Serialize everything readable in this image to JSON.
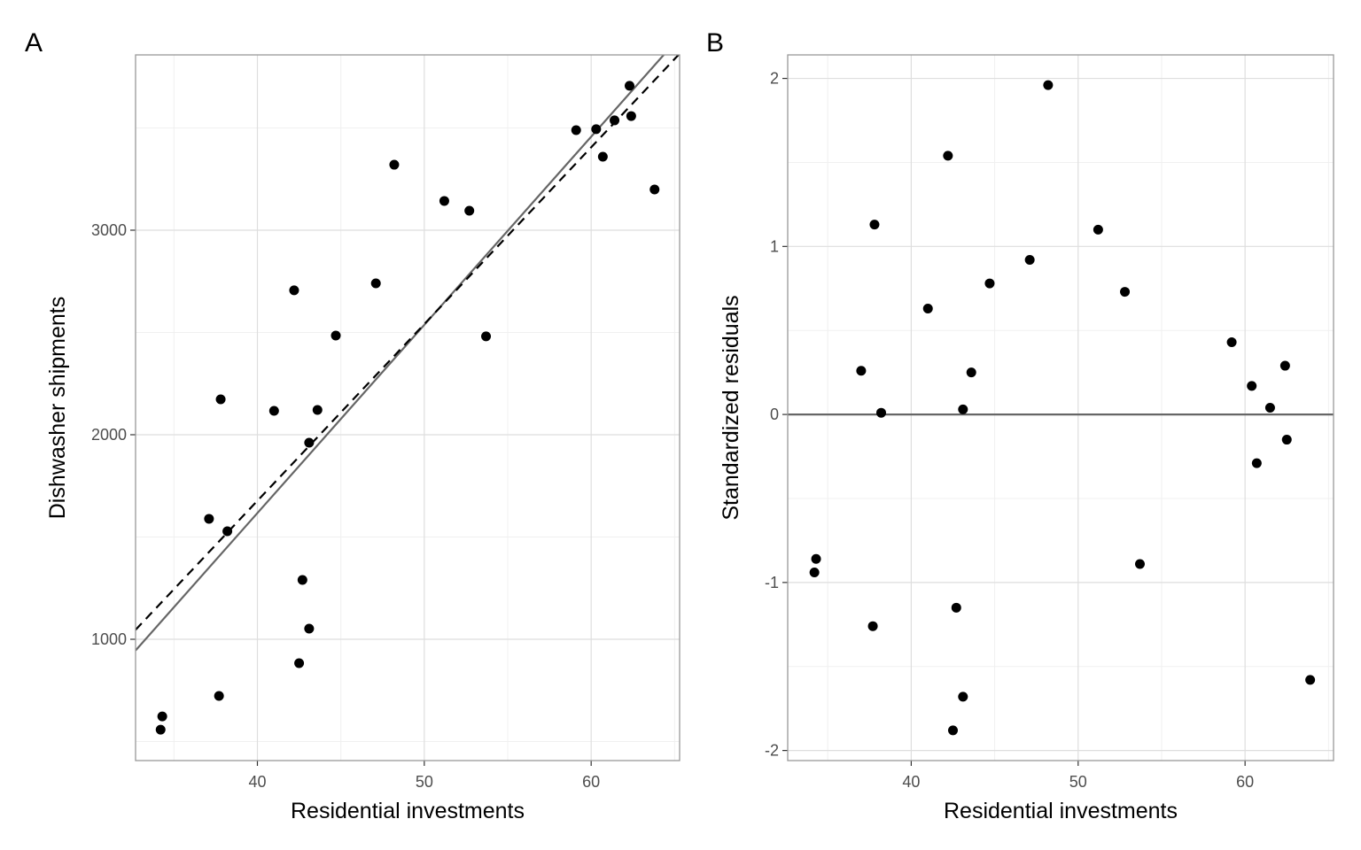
{
  "chart_data": [
    {
      "panel_label": "A",
      "type": "scatter",
      "xlabel": "Residential investments",
      "ylabel": "Dishwasher shipments",
      "xlim": [
        32.7,
        65.3
      ],
      "ylim": [
        407,
        3857
      ],
      "xticks": [
        40,
        50,
        60
      ],
      "yticks": [
        1000,
        2000,
        3000
      ],
      "grid": true,
      "points": [
        [
          34.2,
          558
        ],
        [
          34.3,
          623
        ],
        [
          37.7,
          723
        ],
        [
          37.1,
          1589
        ],
        [
          37.8,
          2173
        ],
        [
          38.2,
          1528
        ],
        [
          41.0,
          2117
        ],
        [
          42.2,
          2706
        ],
        [
          42.5,
          883
        ],
        [
          42.7,
          1290
        ],
        [
          43.1,
          1052
        ],
        [
          43.1,
          1961
        ],
        [
          43.6,
          2121
        ],
        [
          44.7,
          2485
        ],
        [
          47.1,
          2740
        ],
        [
          48.2,
          3320
        ],
        [
          51.2,
          3143
        ],
        [
          52.7,
          3095
        ],
        [
          53.7,
          2481
        ],
        [
          59.1,
          3489
        ],
        [
          60.3,
          3494
        ],
        [
          60.7,
          3359
        ],
        [
          61.4,
          3537
        ],
        [
          62.3,
          3706
        ],
        [
          62.4,
          3558
        ],
        [
          63.8,
          3199
        ]
      ],
      "lines": [
        {
          "style": "solid",
          "color": "#666666",
          "intercept": -2063,
          "slope": 92.0
        },
        {
          "style": "dashed",
          "color": "#000000",
          "intercept": -1779,
          "slope": 86.4
        }
      ]
    },
    {
      "panel_label": "B",
      "type": "scatter",
      "xlabel": "Residential investments",
      "ylabel": "Standardized residuals",
      "xlim": [
        32.6,
        65.3
      ],
      "ylim": [
        -2.06,
        2.14
      ],
      "xticks": [
        40,
        50,
        60
      ],
      "yticks": [
        -2,
        -1,
        0,
        1,
        2
      ],
      "grid": true,
      "points": [
        [
          34.2,
          -0.94
        ],
        [
          34.3,
          -0.86
        ],
        [
          37.7,
          -1.26
        ],
        [
          37.0,
          0.26
        ],
        [
          37.8,
          1.13
        ],
        [
          38.2,
          0.01
        ],
        [
          41.0,
          0.63
        ],
        [
          42.2,
          1.54
        ],
        [
          42.5,
          -1.88
        ],
        [
          42.7,
          -1.15
        ],
        [
          43.1,
          -1.68
        ],
        [
          43.1,
          0.03
        ],
        [
          43.6,
          0.25
        ],
        [
          44.7,
          0.78
        ],
        [
          47.1,
          0.92
        ],
        [
          48.2,
          1.96
        ],
        [
          51.2,
          1.1
        ],
        [
          52.8,
          0.73
        ],
        [
          53.7,
          -0.89
        ],
        [
          59.2,
          0.43
        ],
        [
          60.4,
          0.17
        ],
        [
          60.7,
          -0.29
        ],
        [
          61.5,
          0.04
        ],
        [
          62.4,
          0.29
        ],
        [
          62.5,
          -0.15
        ],
        [
          63.9,
          -1.58
        ]
      ],
      "hline": {
        "y": 0,
        "color": "#666666"
      }
    }
  ]
}
